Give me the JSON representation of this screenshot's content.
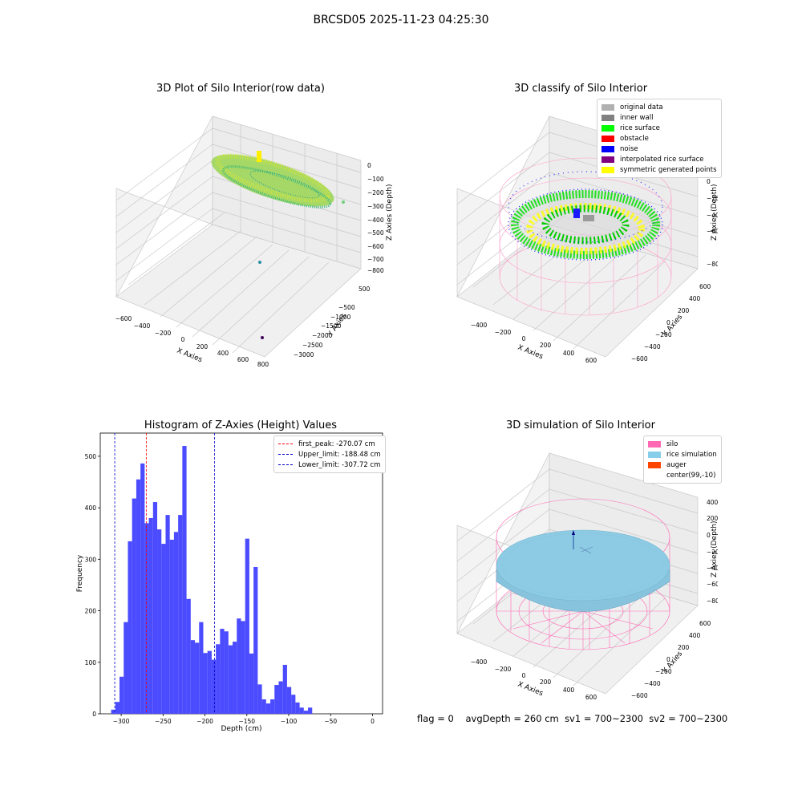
{
  "figure": {
    "suptitle": "BRCSD05 2025-11-23 04:25:30",
    "status": {
      "flag": "flag = 0",
      "avg_depth": "avgDepth = 260 cm",
      "sv1": "sv1 = 700~2300",
      "sv2": "sv2 = 700~2300"
    }
  },
  "panels": {
    "raw": {
      "title": "3D Plot of Silo Interior(row data)",
      "xlabel": "X Axies",
      "ylabel": "Y Axies",
      "zlabel": "Z Axies (Depth)",
      "xticks": [
        "−600",
        "−400",
        "−200",
        "0",
        "200",
        "400",
        "600",
        "800"
      ],
      "yticks": [
        "500",
        "−500",
        "−1000",
        "−1500",
        "−2000",
        "−2500",
        "−3000"
      ],
      "zticks": [
        "0",
        "−100",
        "−200",
        "−300",
        "−400",
        "−500",
        "−600",
        "−700",
        "−800"
      ]
    },
    "classify": {
      "title": "3D classify of Silo Interior",
      "xlabel": "X Axies",
      "ylabel": "Y Axies",
      "zlabel": "Z Axies (Depth)",
      "xticks": [
        "−400",
        "−200",
        "0",
        "200",
        "400",
        "600"
      ],
      "yticks": [
        "600",
        "400",
        "200",
        "0",
        "−200",
        "−400",
        "−600"
      ],
      "zticks": [
        "200",
        "0",
        "−200",
        "−400",
        "−600",
        "−800"
      ],
      "legend": [
        {
          "label": "original data",
          "color": "#b0b0b0"
        },
        {
          "label": "inner wall",
          "color": "#808080"
        },
        {
          "label": "rice surface",
          "color": "#00ff00"
        },
        {
          "label": "obstacle",
          "color": "#ff0000"
        },
        {
          "label": "noise",
          "color": "#0000ff"
        },
        {
          "label": "interpolated rice surface",
          "color": "#800080"
        },
        {
          "label": "symmetric generated points",
          "color": "#ffff00"
        }
      ]
    },
    "simulation": {
      "title": "3D simulation of Silo Interior",
      "xlabel": "X Axies",
      "ylabel": "Y Axies",
      "zlabel": "Z Axies (Depth)",
      "xticks": [
        "−400",
        "−200",
        "0",
        "200",
        "400",
        "600"
      ],
      "yticks": [
        "600",
        "400",
        "200",
        "0",
        "−200",
        "−400",
        "−600"
      ],
      "zticks": [
        "400",
        "200",
        "0",
        "−200",
        "−400",
        "−600",
        "−800"
      ],
      "legend": [
        {
          "label": "silo",
          "color": "#ff69b4"
        },
        {
          "label": "rice simulation",
          "color": "#87ceeb"
        },
        {
          "label": "auger",
          "color": "#ff4500"
        },
        {
          "label": "center(99,-10)",
          "color": ""
        }
      ]
    }
  },
  "chart_data": {
    "type": "bar",
    "title": "Histogram of Z-Axies (Height) Values",
    "xlabel": "Depth (cm)",
    "ylabel": "Frequency",
    "bin_start": -312,
    "bin_width": 5,
    "values": [
      8,
      23,
      72,
      178,
      335,
      418,
      455,
      486,
      370,
      380,
      411,
      358,
      330,
      386,
      338,
      353,
      386,
      520,
      223,
      143,
      138,
      178,
      118,
      122,
      105,
      135,
      165,
      160,
      133,
      140,
      185,
      180,
      340,
      117,
      285,
      57,
      28,
      20,
      28,
      56,
      63,
      95,
      52,
      37,
      22,
      12,
      6,
      12
    ],
    "xlim": [
      -325,
      12
    ],
    "ylim": [
      0,
      545
    ],
    "xticks": [
      -300,
      -250,
      -200,
      -150,
      -100,
      -50,
      0
    ],
    "yticks": [
      0,
      100,
      200,
      300,
      400,
      500
    ],
    "bar_color": "#4b4bff",
    "vlines": [
      {
        "label": "first_peak: -270.07 cm",
        "x": -270.07,
        "color": "#ff0000"
      },
      {
        "label": "Upper_limit: -188.48 cm",
        "x": -188.48,
        "color": "#0000cc"
      },
      {
        "label": "Lower_limit: -307.72 cm",
        "x": -307.72,
        "color": "#0000cc"
      }
    ],
    "legend_position": "upper right"
  }
}
